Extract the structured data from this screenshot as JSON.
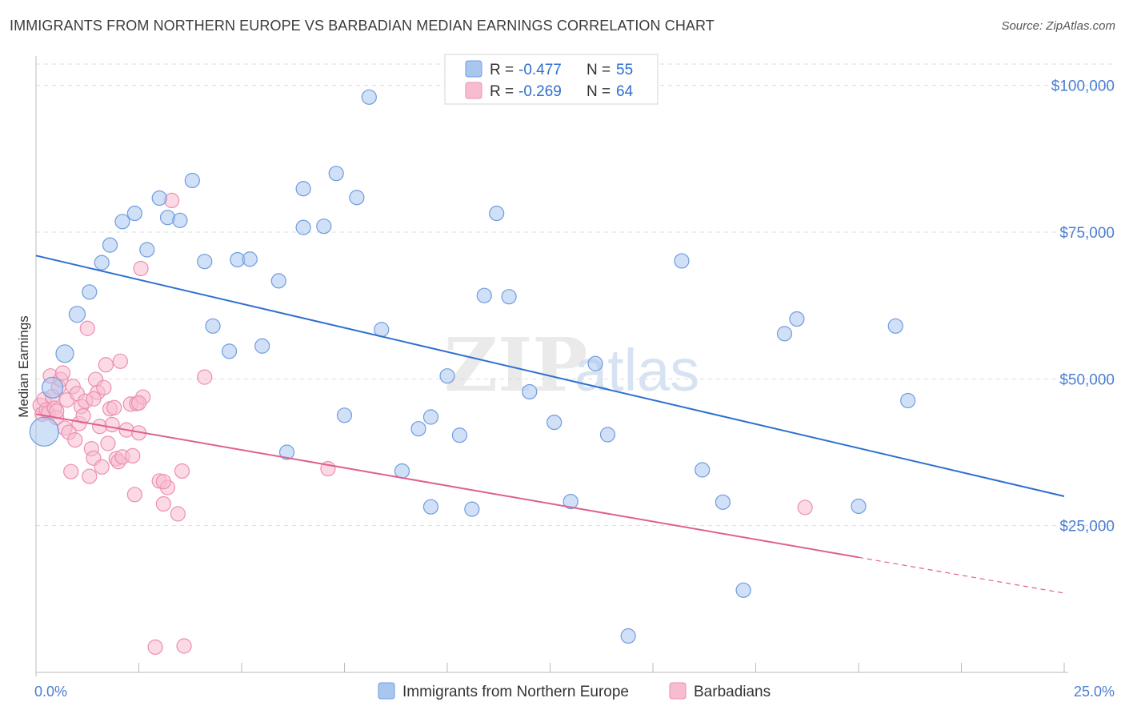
{
  "title": "IMMIGRANTS FROM NORTHERN EUROPE VS BARBADIAN MEDIAN EARNINGS CORRELATION CHART",
  "source": "Source: ZipAtlas.com",
  "watermark": {
    "zip": "ZIP",
    "atlas": "atlas"
  },
  "colors": {
    "blue_fill": "#a9c6ef",
    "blue_stroke": "#6f9ce0",
    "blue_line": "#2f6fd0",
    "pink_fill": "#f7bcd0",
    "pink_stroke": "#ec8fae",
    "pink_line": "#e0608e",
    "tick_text": "#4a7fd0",
    "grid": "#dddddd"
  },
  "legend": {
    "rows": [
      {
        "r_label": "R = ",
        "r_value": "-0.477",
        "n_label": "N = ",
        "n_value": "55",
        "color": "blue"
      },
      {
        "r_label": "R = ",
        "r_value": "-0.269",
        "n_label": "N = ",
        "n_value": "64",
        "color": "pink"
      }
    ]
  },
  "bottom_legend": [
    "Immigrants from Northern Europe",
    "Barbadians"
  ],
  "chart_data": {
    "type": "scatter",
    "title": "IMMIGRANTS FROM NORTHERN EUROPE VS BARBADIAN MEDIAN EARNINGS CORRELATION CHART",
    "xlabel": "",
    "ylabel": "Median Earnings",
    "xlim": [
      0,
      25
    ],
    "ylim": [
      0,
      105000
    ],
    "x_tick_labels": [
      "0.0%",
      "25.0%"
    ],
    "y_ticks": [
      25000,
      50000,
      75000,
      100000
    ],
    "y_tick_labels": [
      "$25,000",
      "$50,000",
      "$75,000",
      "$100,000"
    ],
    "grid": true,
    "legend_position": "top-center",
    "series": [
      {
        "name": "Immigrants from Northern Europe",
        "color": "#a9c6ef",
        "trend": {
          "x": [
            0,
            25
          ],
          "y": [
            71000,
            30000
          ],
          "dashed_from": null
        },
        "points": [
          [
            0.2,
            41000,
            18
          ],
          [
            0.7,
            54300,
            11
          ],
          [
            0.4,
            48500,
            13
          ],
          [
            1.0,
            61000,
            10
          ],
          [
            1.3,
            64800,
            9
          ],
          [
            1.6,
            69800,
            9
          ],
          [
            1.8,
            72800,
            9
          ],
          [
            2.1,
            76800,
            9
          ],
          [
            2.4,
            78200,
            9
          ],
          [
            2.7,
            72000,
            9
          ],
          [
            3.0,
            80800,
            9
          ],
          [
            3.2,
            77500,
            9
          ],
          [
            3.5,
            77000,
            9
          ],
          [
            3.8,
            83800,
            9
          ],
          [
            4.1,
            70000,
            9
          ],
          [
            4.3,
            59000,
            9
          ],
          [
            4.7,
            54700,
            9
          ],
          [
            4.9,
            70300,
            9
          ],
          [
            5.2,
            70400,
            9
          ],
          [
            5.5,
            55600,
            9
          ],
          [
            5.9,
            66700,
            9
          ],
          [
            6.1,
            37500,
            9
          ],
          [
            6.5,
            75800,
            9
          ],
          [
            6.5,
            82400,
            9
          ],
          [
            7.0,
            76000,
            9
          ],
          [
            7.3,
            85000,
            9
          ],
          [
            7.5,
            43800,
            9
          ],
          [
            7.8,
            80900,
            9
          ],
          [
            8.1,
            98000,
            9
          ],
          [
            8.4,
            58400,
            9
          ],
          [
            8.9,
            34300,
            9
          ],
          [
            9.3,
            41500,
            9
          ],
          [
            9.6,
            43500,
            9
          ],
          [
            9.6,
            28200,
            9
          ],
          [
            10.0,
            50500,
            9
          ],
          [
            10.3,
            40400,
            9
          ],
          [
            10.6,
            27800,
            9
          ],
          [
            10.9,
            64200,
            9
          ],
          [
            11.2,
            78200,
            9
          ],
          [
            11.5,
            64000,
            9
          ],
          [
            12.0,
            47800,
            9
          ],
          [
            12.6,
            42600,
            9
          ],
          [
            13.0,
            29100,
            9
          ],
          [
            13.6,
            52600,
            9
          ],
          [
            13.9,
            40500,
            9
          ],
          [
            14.4,
            6200,
            9
          ],
          [
            15.7,
            70100,
            9
          ],
          [
            16.2,
            34500,
            9
          ],
          [
            16.7,
            29000,
            9
          ],
          [
            17.2,
            14000,
            9
          ],
          [
            18.2,
            57700,
            9
          ],
          [
            18.5,
            60200,
            9
          ],
          [
            20.0,
            28300,
            9
          ],
          [
            20.9,
            59000,
            9
          ],
          [
            21.2,
            46300,
            9
          ]
        ]
      },
      {
        "name": "Barbadians",
        "color": "#f7bcd0",
        "trend": {
          "x": [
            0,
            25
          ],
          "y": [
            44000,
            13500
          ],
          "dashed_from": 20
        },
        "points": [
          [
            0.1,
            45500,
            9
          ],
          [
            0.15,
            44000,
            9
          ],
          [
            0.2,
            46500,
            9
          ],
          [
            0.25,
            44700,
            9
          ],
          [
            0.3,
            44200,
            9
          ],
          [
            0.35,
            50500,
            9
          ],
          [
            0.4,
            47000,
            9
          ],
          [
            0.45,
            45000,
            9
          ],
          [
            0.5,
            43400,
            9
          ],
          [
            0.55,
            48600,
            9
          ],
          [
            0.6,
            49900,
            9
          ],
          [
            0.65,
            51000,
            9
          ],
          [
            0.7,
            41600,
            9
          ],
          [
            0.75,
            46400,
            9
          ],
          [
            0.8,
            40900,
            9
          ],
          [
            0.85,
            34200,
            9
          ],
          [
            0.9,
            48700,
            9
          ],
          [
            0.95,
            39600,
            9
          ],
          [
            1.0,
            47500,
            9
          ],
          [
            1.05,
            42400,
            9
          ],
          [
            1.1,
            45300,
            9
          ],
          [
            1.15,
            43700,
            9
          ],
          [
            1.2,
            46200,
            9
          ],
          [
            1.25,
            58600,
            9
          ],
          [
            1.3,
            33400,
            9
          ],
          [
            1.35,
            38100,
            9
          ],
          [
            1.4,
            36500,
            9
          ],
          [
            1.45,
            49900,
            9
          ],
          [
            1.5,
            47700,
            9
          ],
          [
            1.55,
            41900,
            9
          ],
          [
            1.6,
            35000,
            9
          ],
          [
            1.65,
            48500,
            9
          ],
          [
            1.7,
            52400,
            9
          ],
          [
            1.75,
            39000,
            9
          ],
          [
            1.8,
            44900,
            9
          ],
          [
            1.85,
            42200,
            9
          ],
          [
            1.9,
            45100,
            9
          ],
          [
            1.95,
            36400,
            9
          ],
          [
            2.0,
            35900,
            9
          ],
          [
            2.05,
            53000,
            9
          ],
          [
            2.1,
            36700,
            9
          ],
          [
            2.2,
            41300,
            9
          ],
          [
            2.3,
            45700,
            9
          ],
          [
            2.35,
            36900,
            9
          ],
          [
            2.4,
            30300,
            9
          ],
          [
            2.45,
            45800,
            9
          ],
          [
            2.5,
            40800,
            9
          ],
          [
            2.55,
            68800,
            9
          ],
          [
            2.6,
            46900,
            9
          ],
          [
            2.9,
            4300,
            9
          ],
          [
            2.5,
            45900,
            9
          ],
          [
            3.0,
            32600,
            9
          ],
          [
            3.1,
            28700,
            9
          ],
          [
            3.2,
            31500,
            9
          ],
          [
            3.1,
            32500,
            9
          ],
          [
            3.3,
            80400,
            9
          ],
          [
            3.45,
            27000,
            9
          ],
          [
            3.55,
            34300,
            9
          ],
          [
            3.6,
            4500,
            9
          ],
          [
            4.1,
            50300,
            9
          ],
          [
            7.1,
            34700,
            9
          ],
          [
            18.7,
            28100,
            9
          ],
          [
            0.5,
            44500,
            9
          ],
          [
            1.4,
            46600,
            9
          ]
        ]
      }
    ]
  }
}
